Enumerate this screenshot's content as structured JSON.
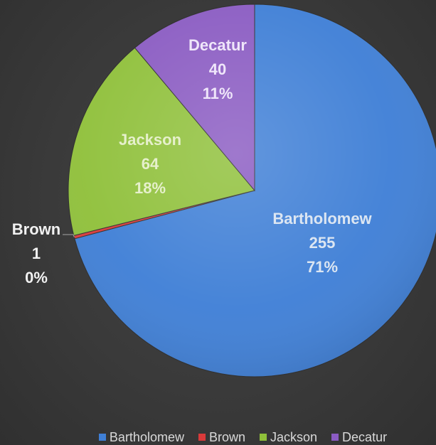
{
  "chart_data": {
    "type": "pie",
    "title": "",
    "categories": [
      "Bartholomew",
      "Brown",
      "Jackson",
      "Decatur"
    ],
    "values": [
      255,
      1,
      64,
      40
    ],
    "percent_labels": [
      "71%",
      "0%",
      "18%",
      "11%"
    ],
    "value_labels": [
      "255",
      "1",
      "64",
      "40"
    ],
    "colors": [
      "#3f7fd6",
      "#d93a3a",
      "#8fc03a",
      "#8a5bc2"
    ],
    "label_colors": [
      "#dce6f2",
      "#f2f2f2",
      "#e6f0cc",
      "#efe6fa"
    ],
    "start_angle_deg": 0,
    "direction": "clockwise",
    "legend": {
      "position": "bottom",
      "entries": [
        "Bartholomew",
        "Brown",
        "Jackson",
        "Decatur"
      ]
    }
  }
}
